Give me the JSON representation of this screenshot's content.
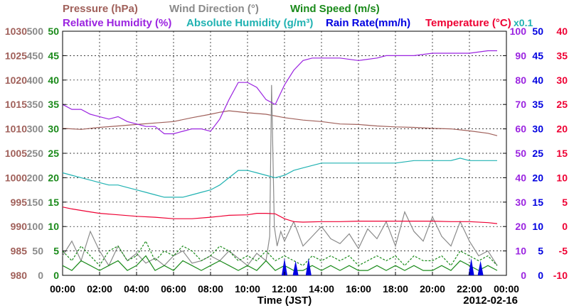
{
  "chart_data": {
    "type": "line",
    "legend": {
      "row1": [
        {
          "text": "Pressure (hPa)",
          "color": "#a0605a"
        },
        {
          "text": "Wind Direction (°)",
          "color": "#8a8a8a"
        },
        {
          "text": "Wind Speed (m/s)",
          "color": "#1a8a1a"
        }
      ],
      "row2": [
        {
          "text": "Relative Humidity (%)",
          "color": "#9b24e0"
        },
        {
          "text": "Absolute Humidity (g/m³)",
          "color": "#20b2b2"
        },
        {
          "text": "Rain Rate(mm/h)",
          "color": "#0000e0"
        },
        {
          "text": "Temperature (°C)",
          "color": "#ee0033"
        }
      ],
      "scale_note": {
        "text": "x0.1",
        "color": "#20b2b2"
      }
    },
    "xlabel": "Time (JST)",
    "date_label": "2012-02-16",
    "x_ticks": [
      "00:00",
      "02:00",
      "04:00",
      "06:00",
      "08:00",
      "10:00",
      "12:00",
      "14:00",
      "16:00",
      "18:00",
      "20:00",
      "22:00",
      "00:00"
    ],
    "xlim": [
      0,
      24
    ],
    "axes": {
      "pressure": {
        "color": "#a0605a",
        "ticks": [
          "980",
          "985",
          "990",
          "995",
          "1000",
          "1005",
          "1010",
          "1015",
          "1020",
          "1025",
          "1030"
        ],
        "ylim": [
          980,
          1030
        ]
      },
      "wind_direction": {
        "color": "#8a8a8a",
        "ticks": [
          "0",
          "50",
          "100",
          "150",
          "200",
          "250",
          "300",
          "350",
          "400",
          "450",
          "500"
        ],
        "ylim": [
          0,
          500
        ]
      },
      "wind_speed": {
        "color": "#1a8a1a",
        "ticks": [
          "0",
          "5",
          "10",
          "15",
          "20",
          "25",
          "30",
          "35",
          "40",
          "45",
          "50"
        ],
        "ylim": [
          0,
          50
        ]
      },
      "relative_humidity": {
        "color": "#9b24e0",
        "ticks": [
          "0",
          "10",
          "20",
          "30",
          "40",
          "50",
          "60",
          "70",
          "80",
          "90",
          "100"
        ],
        "ylim": [
          0,
          100
        ]
      },
      "rain_rate": {
        "color": "#0000e0",
        "ticks": [
          "0",
          "5",
          "10",
          "15",
          "20",
          "25",
          "30",
          "35",
          "40",
          "45",
          "50"
        ],
        "ylim": [
          0,
          50
        ]
      },
      "temperature": {
        "color": "#ee0033",
        "ticks": [
          "-10",
          "-5",
          "0",
          "5",
          "10",
          "15",
          "20",
          "25",
          "30",
          "35",
          "40"
        ],
        "ylim": [
          -10,
          40
        ]
      }
    },
    "series": [
      {
        "name": "Pressure (hPa)",
        "axis": "pressure",
        "color": "#a0605a",
        "x": [
          0,
          1,
          2,
          3,
          4,
          5,
          6,
          7,
          8,
          8.5,
          9,
          10,
          11,
          12,
          13,
          14,
          15,
          16,
          17,
          18,
          19,
          20,
          21,
          22,
          23,
          23.5
        ],
        "y": [
          1010.1,
          1009.9,
          1010.3,
          1010.6,
          1010.9,
          1011.2,
          1011.5,
          1012.3,
          1013.0,
          1013.4,
          1013.7,
          1013.3,
          1013.0,
          1012.3,
          1011.8,
          1011.5,
          1011.0,
          1010.9,
          1010.6,
          1010.4,
          1010.3,
          1010.1,
          1010.0,
          1009.6,
          1009.1,
          1008.6
        ]
      },
      {
        "name": "Wind Direction (°)",
        "axis": "wind_direction",
        "color": "#8a8a8a",
        "x": [
          0,
          0.5,
          1,
          1.5,
          2,
          2.5,
          3,
          3.5,
          4,
          4.5,
          5,
          5.5,
          6,
          6.5,
          7,
          7.5,
          8,
          8.5,
          9,
          9.5,
          10,
          10.5,
          11,
          11.2,
          11.3,
          11.45,
          11.6,
          11.8,
          12,
          12.5,
          13,
          13.5,
          14,
          14.5,
          15,
          15.5,
          16,
          16.5,
          17,
          17.5,
          18,
          18.5,
          19,
          19.5,
          20,
          20.5,
          21,
          21.5,
          22,
          22.5,
          23,
          23.5
        ],
        "y": [
          40,
          70,
          30,
          90,
          50,
          20,
          60,
          30,
          45,
          25,
          35,
          20,
          40,
          50,
          25,
          30,
          40,
          30,
          50,
          35,
          20,
          45,
          30,
          80,
          390,
          100,
          60,
          90,
          70,
          110,
          60,
          80,
          100,
          75,
          65,
          85,
          55,
          95,
          75,
          110,
          60,
          130,
          90,
          70,
          120,
          80,
          60,
          110,
          70,
          40,
          50,
          20
        ]
      },
      {
        "name": "Wind Speed (m/s)",
        "axis": "wind_speed",
        "color": "#1a8a1a",
        "x": [
          0,
          0.5,
          1,
          1.5,
          2,
          2.5,
          3,
          3.5,
          4,
          4.5,
          5,
          5.5,
          6,
          6.5,
          7,
          7.5,
          8,
          8.5,
          9,
          9.5,
          10,
          10.5,
          11,
          11.5,
          12,
          12.5,
          13,
          13.5,
          14,
          14.5,
          15,
          15.5,
          16,
          16.5,
          17,
          17.5,
          18,
          18.5,
          19,
          19.5,
          20,
          20.5,
          21,
          21.5,
          22,
          22.5,
          23,
          23.5
        ],
        "y": [
          2,
          1,
          3,
          2,
          1,
          2,
          3,
          1,
          2,
          4,
          1,
          2,
          1,
          3,
          2,
          1,
          2,
          3,
          2,
          1,
          2,
          1,
          3,
          1,
          2,
          1,
          1,
          2,
          1,
          2,
          1,
          2,
          1,
          1,
          2,
          1,
          2,
          1,
          2,
          1,
          1,
          2,
          1,
          3,
          2,
          1,
          2,
          1
        ]
      },
      {
        "name": "Wind Speed (m/s)",
        "axis": "wind_speed",
        "color": "#1a8a1a",
        "dashed": true,
        "x": [
          0,
          0.5,
          1,
          1.5,
          2,
          2.5,
          3,
          3.5,
          4,
          4.5,
          5,
          5.5,
          6,
          6.5,
          7,
          7.5,
          8,
          8.5,
          9,
          9.5,
          10,
          10.5,
          11,
          11.5,
          12,
          12.5,
          13,
          13.5,
          14,
          14.5,
          15,
          15.5,
          16,
          16.5,
          17,
          17.5,
          18,
          18.5,
          19,
          19.5,
          20,
          20.5,
          21,
          21.5,
          22,
          22.5,
          23,
          23.5
        ],
        "y": [
          5,
          3,
          6,
          4,
          2,
          5,
          6,
          3,
          4,
          7,
          3,
          5,
          4,
          6,
          5,
          3,
          4,
          6,
          5,
          3,
          4,
          3,
          5,
          3,
          4,
          3,
          2,
          4,
          3,
          4,
          3,
          4,
          2,
          3,
          4,
          3,
          4,
          2,
          4,
          3,
          3,
          4,
          2,
          5,
          4,
          3,
          4,
          2
        ]
      },
      {
        "name": "Relative Humidity (%)",
        "axis": "relative_humidity",
        "color": "#9b24e0",
        "x": [
          0,
          0.5,
          1,
          1.5,
          2,
          2.5,
          3,
          3.5,
          4,
          4.5,
          5,
          5.5,
          6,
          6.5,
          7,
          7.5,
          8,
          8.5,
          9,
          9.5,
          10,
          10.5,
          11,
          11.5,
          12,
          12.5,
          13,
          13.5,
          14,
          15,
          16,
          17,
          17.5,
          18,
          19,
          20,
          21,
          22,
          23,
          23.5
        ],
        "y": [
          70,
          68,
          68,
          66,
          65,
          64,
          65,
          63,
          62,
          61,
          61,
          58,
          58,
          59,
          60,
          60,
          59,
          64,
          72,
          79,
          79,
          77,
          72,
          70,
          78,
          84,
          88,
          89,
          89,
          89,
          88,
          89,
          90,
          90,
          90,
          91,
          91,
          91,
          92,
          92
        ]
      },
      {
        "name": "Absolute Humidity (g/m³)",
        "axis": "relative_humidity",
        "color": "#20b2b2",
        "x": [
          0,
          0.5,
          1,
          1.5,
          2,
          2.5,
          3,
          3.5,
          4,
          4.5,
          5,
          5.5,
          6,
          6.5,
          7,
          7.5,
          8,
          8.5,
          9,
          9.5,
          10,
          10.5,
          11,
          11.5,
          12,
          12.5,
          13,
          13.5,
          14,
          15,
          16,
          17,
          18,
          19,
          20,
          21,
          21.5,
          22,
          23,
          23.5
        ],
        "y": [
          42,
          41,
          40,
          39,
          38,
          37,
          37,
          36,
          35,
          34,
          33,
          32,
          32,
          32,
          33,
          34,
          35,
          37,
          40,
          43,
          43,
          42,
          41,
          40,
          41,
          43,
          44,
          45,
          46,
          46,
          46,
          46,
          46,
          47,
          47,
          47,
          48,
          47,
          47,
          47
        ]
      },
      {
        "name": "Temperature (°C)",
        "axis": "temperature",
        "color": "#ee0033",
        "x": [
          0,
          0.5,
          1,
          1.5,
          2,
          3,
          4,
          5,
          6,
          7,
          8,
          8.5,
          9,
          10,
          10.5,
          11,
          11.5,
          12,
          12.5,
          13,
          14,
          15,
          16,
          17,
          18,
          19,
          20,
          21,
          22,
          23,
          23.5
        ],
        "y": [
          4.0,
          3.6,
          3.3,
          3.0,
          2.7,
          2.4,
          2.1,
          1.9,
          1.6,
          1.6,
          1.9,
          2.1,
          2.3,
          2.4,
          2.7,
          2.7,
          2.6,
          1.6,
          1.0,
          0.9,
          1.0,
          1.0,
          1.1,
          1.1,
          1.1,
          1.1,
          1.1,
          1.0,
          1.0,
          0.8,
          0.6
        ]
      },
      {
        "name": "Rain Rate(mm/h)",
        "axis": "rain_rate",
        "color": "#0000e0",
        "type": "spikes",
        "x": [
          12.0,
          12.6,
          13.3,
          22.1,
          22.6
        ],
        "y": [
          3.5,
          3.0,
          3.5,
          3.5,
          3.0
        ]
      }
    ],
    "grid": true
  }
}
